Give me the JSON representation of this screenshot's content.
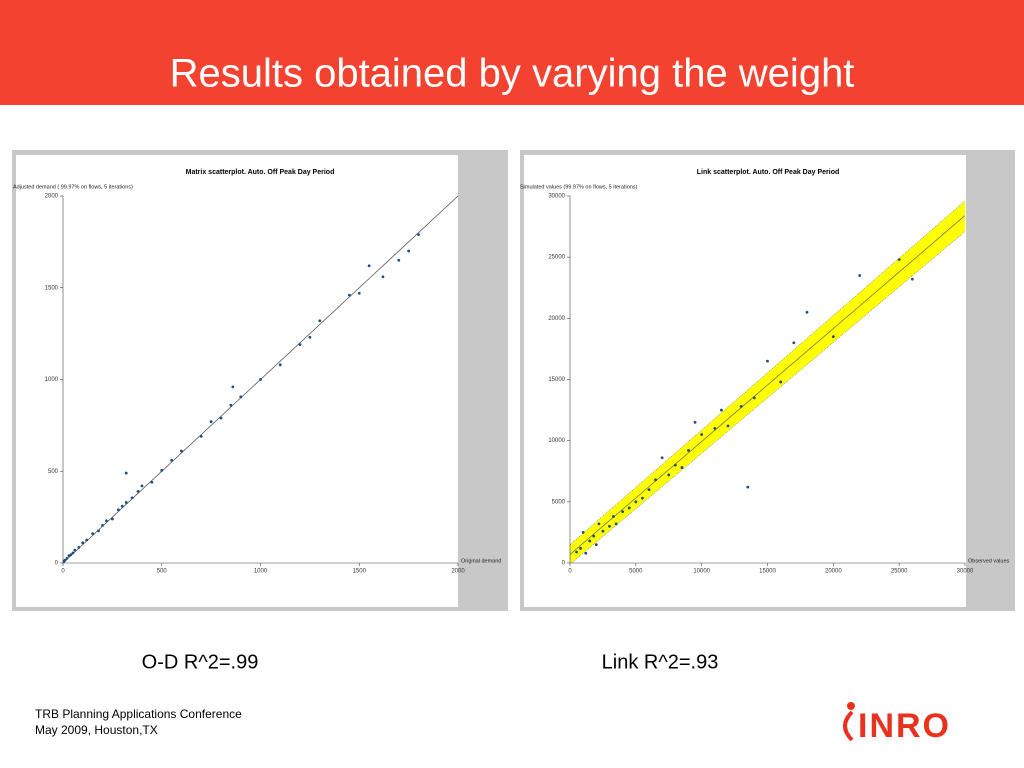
{
  "slide": {
    "title": "Results obtained by varying the weight",
    "captions": [
      "O-D R^2=.99",
      "Link R^2=.93"
    ],
    "footer": [
      "TRB Planning Applications Conference",
      "May 2009, Houston,TX"
    ],
    "logo": "INRO"
  },
  "chart_data": [
    {
      "type": "scatter",
      "title": "Matrix scatterplot. Auto. Off Peak Day Period",
      "ylabel": "Adjusted demand ( 99.97% on flows, 5 iterations)",
      "xlabel": "Original demand",
      "xlim": [
        0,
        2000
      ],
      "ylim": [
        0,
        2000
      ],
      "xticks": [
        0,
        500,
        1000,
        1500,
        2000
      ],
      "yticks": [
        0,
        500,
        1000,
        1500,
        2000
      ],
      "color": "#1f4e79",
      "x": [
        5,
        10,
        20,
        30,
        40,
        50,
        60,
        80,
        100,
        120,
        150,
        180,
        200,
        220,
        250,
        280,
        300,
        320,
        350,
        380,
        400,
        450,
        500,
        550,
        600,
        700,
        750,
        800,
        850,
        900,
        1000,
        1100,
        1200,
        1250,
        1300,
        1450,
        1500,
        1550,
        1620,
        1700,
        1750,
        1800,
        320,
        860
      ],
      "y": [
        8,
        15,
        25,
        40,
        45,
        55,
        70,
        85,
        110,
        125,
        160,
        175,
        205,
        230,
        240,
        290,
        310,
        330,
        355,
        390,
        420,
        440,
        505,
        560,
        610,
        690,
        770,
        790,
        860,
        905,
        1000,
        1080,
        1190,
        1230,
        1320,
        1460,
        1470,
        1620,
        1560,
        1650,
        1700,
        1790,
        490,
        960
      ]
    },
    {
      "type": "scatter",
      "title": "Link scatterplot. Auto. Off Peak Day Period",
      "ylabel": "Simulated values (99.97% on flows, 5 iterations)",
      "xlabel": "Observed values",
      "xlim": [
        0,
        30000
      ],
      "ylim": [
        0,
        30000
      ],
      "xticks": [
        0,
        5000,
        10000,
        15000,
        20000,
        25000,
        30000
      ],
      "yticks": [
        0,
        5000,
        10000,
        15000,
        20000,
        25000,
        30000
      ],
      "color": "#1f4e79",
      "band": {
        "color": "#ffff00",
        "x": [
          0,
          30000
        ],
        "upper": [
          1500,
          29600
        ],
        "lower": [
          -100,
          27100
        ],
        "center": [
          700,
          28400
        ]
      },
      "x": [
        500,
        800,
        1000,
        1200,
        1500,
        1800,
        2000,
        2200,
        2500,
        3000,
        3300,
        3500,
        4000,
        4500,
        5000,
        5500,
        6000,
        6500,
        7000,
        7500,
        8000,
        8500,
        9000,
        9500,
        10000,
        11000,
        11500,
        12000,
        13000,
        13500,
        14000,
        15000,
        16000,
        17000,
        18000,
        20000,
        22000,
        25000,
        26000
      ],
      "y": [
        900,
        1200,
        2500,
        800,
        1800,
        2200,
        1500,
        3200,
        2600,
        3000,
        3800,
        3200,
        4200,
        4500,
        5000,
        5300,
        6000,
        6800,
        8600,
        7200,
        8000,
        7800,
        9200,
        11500,
        10500,
        11000,
        12500,
        11200,
        12800,
        6200,
        13500,
        16500,
        14800,
        18000,
        20500,
        18500,
        23500,
        24800,
        23200
      ]
    }
  ]
}
